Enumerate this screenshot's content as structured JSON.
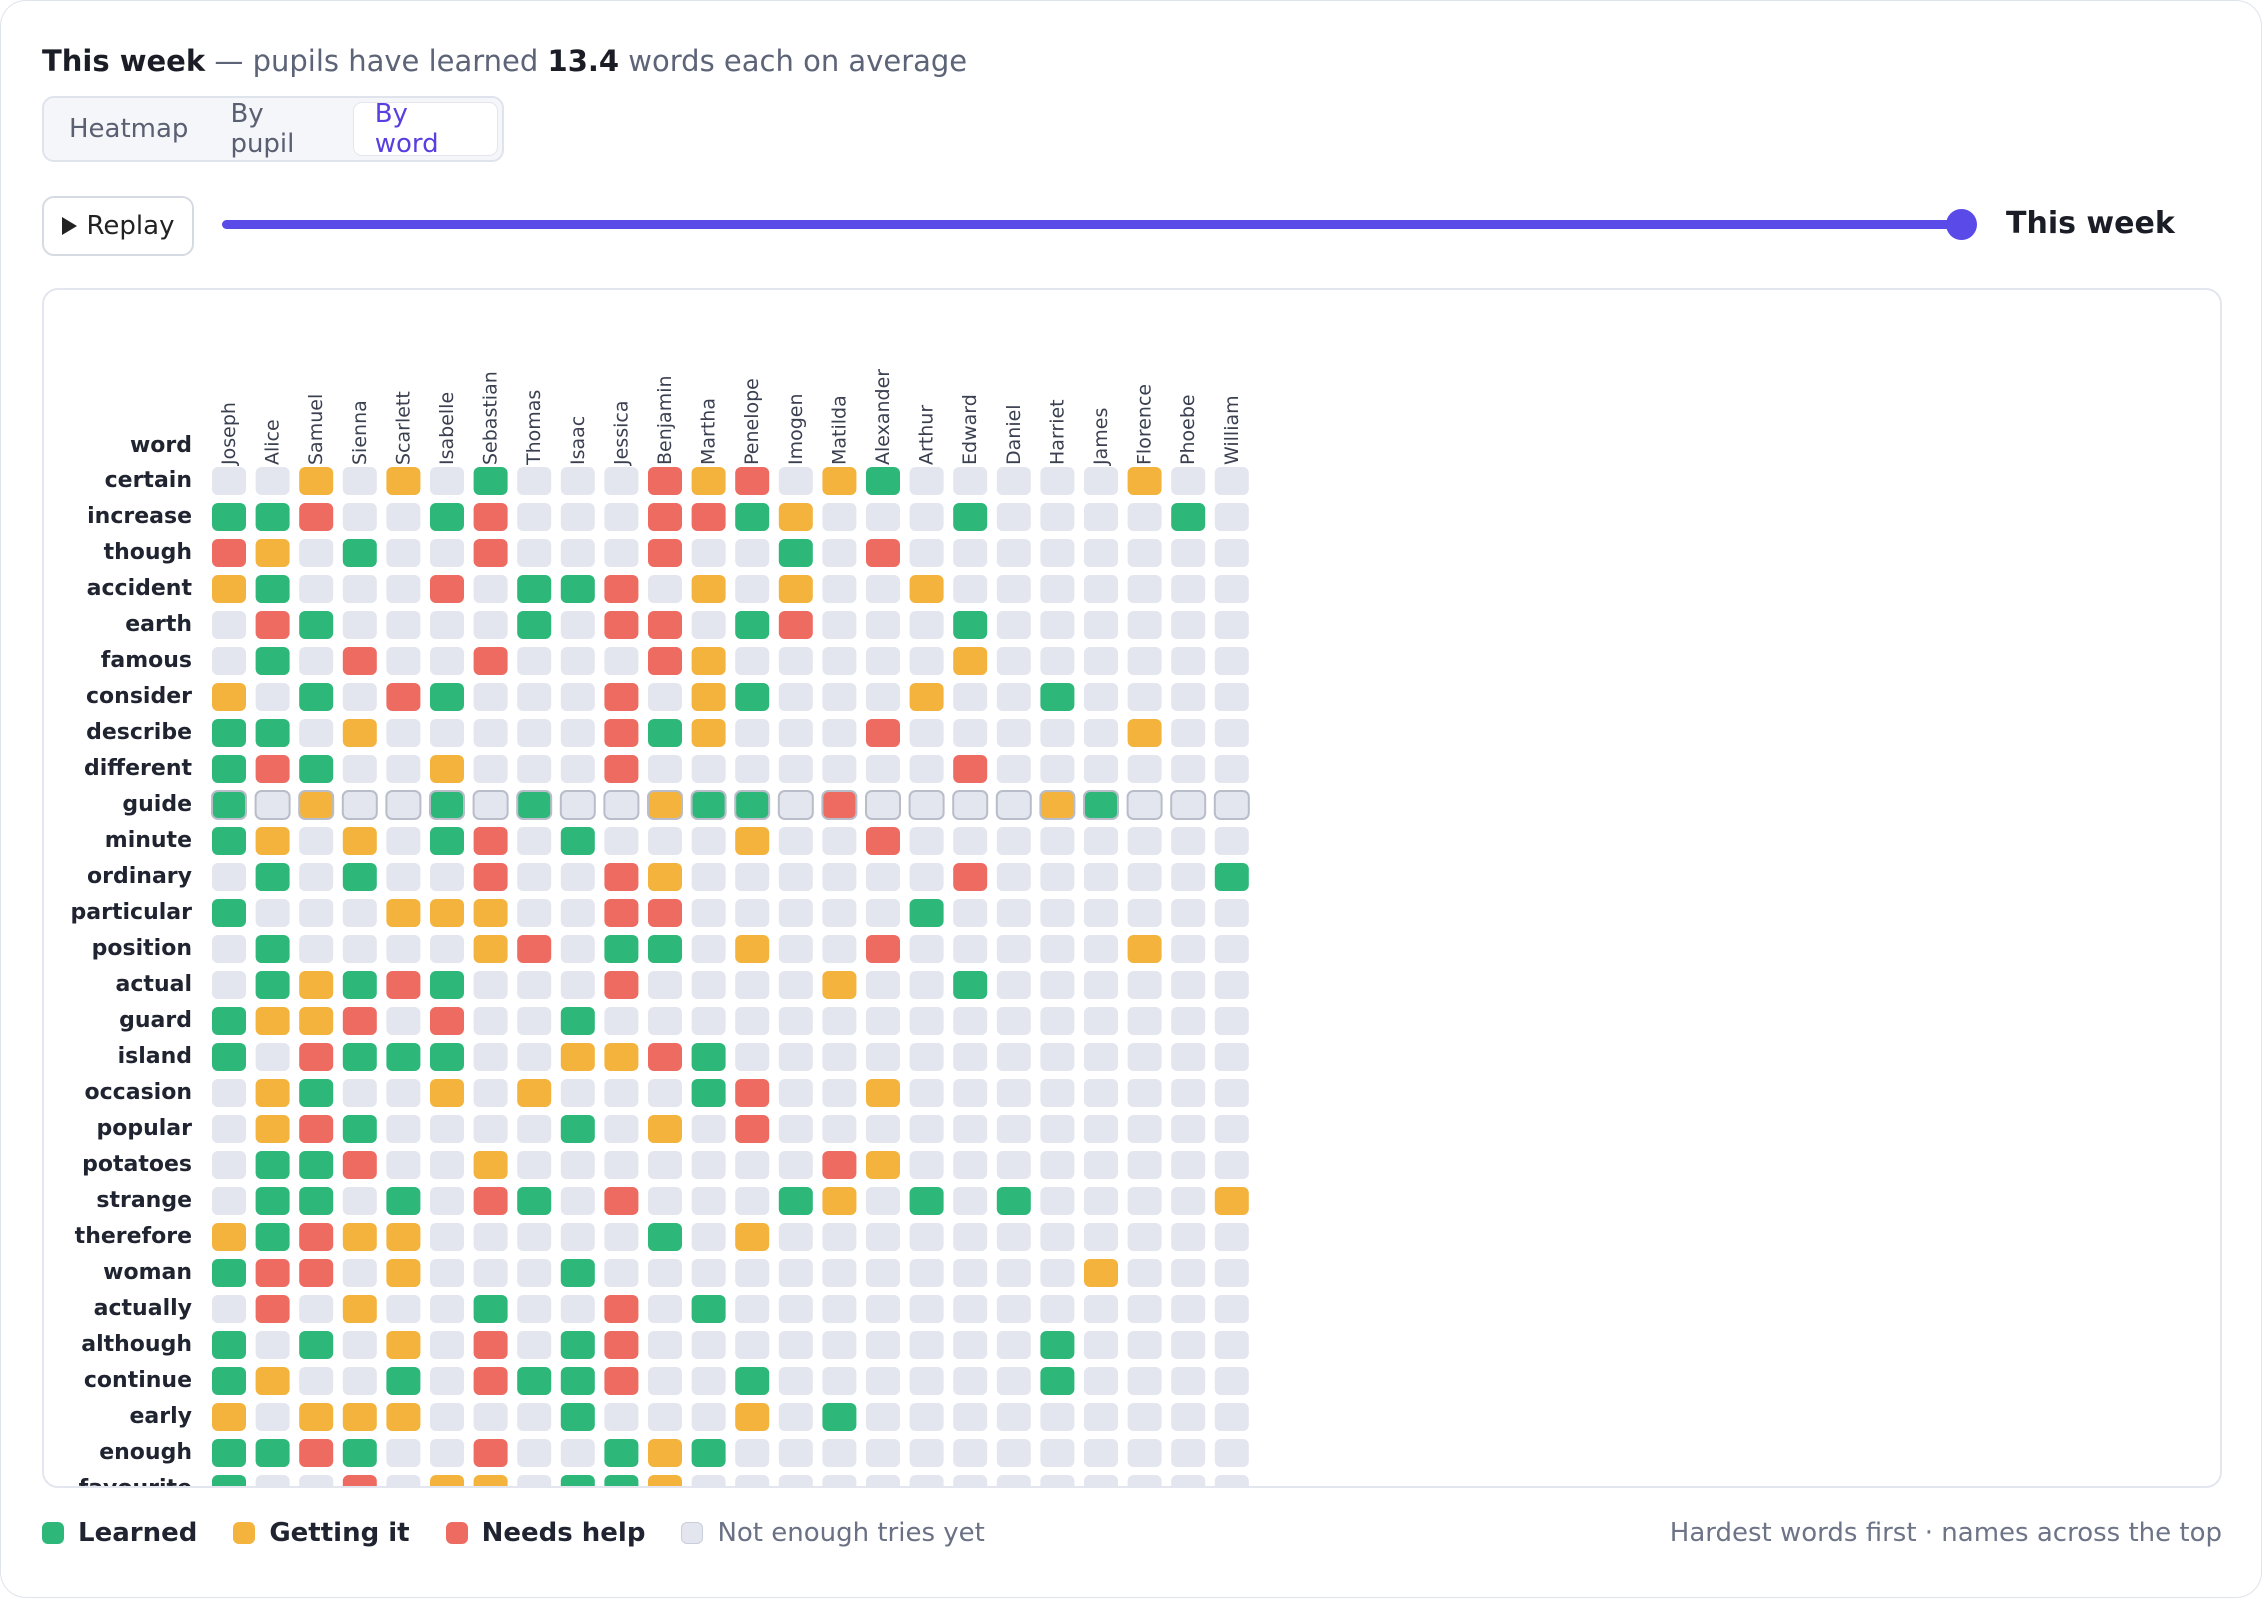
{
  "header": {
    "title_bold": "This week",
    "title_mid": " — pupils have learned ",
    "average": "13.4",
    "title_end": " words each on average"
  },
  "tabs": [
    "Heatmap",
    "By pupil",
    "By word"
  ],
  "active_tab": 2,
  "replay_label": "Replay",
  "slider": {
    "label": "This week",
    "progress": 1.0
  },
  "colors": {
    "learned": "#2db87a",
    "getting": "#f3b33c",
    "needs": "#ee6b62",
    "none": "#e4e6ef",
    "accent": "#5a4ae8"
  },
  "grid": {
    "corner_label": "word",
    "pupils": [
      "Joseph",
      "Alice",
      "Samuel",
      "Sienna",
      "Scarlett",
      "Isabelle",
      "Sebastian",
      "Thomas",
      "Isaac",
      "Jessica",
      "Benjamin",
      "Martha",
      "Penelope",
      "Imogen",
      "Matilda",
      "Alexander",
      "Arthur",
      "Edward",
      "Daniel",
      "Harriet",
      "James",
      "Florence",
      "Phoebe",
      "William"
    ],
    "highlight_row": 9,
    "rows": [
      {
        "word": "certain",
        "cells": "..Y.Y.G...RYR.YG.....Y.."
      },
      {
        "word": "increase",
        "cells": "GGR..GR...RRGY...G....G."
      },
      {
        "word": "though",
        "cells": "RY.G..R...R..G.R........"
      },
      {
        "word": "accident",
        "cells": "YG...R.GGR.Y.Y..Y......."
      },
      {
        "word": "earth",
        "cells": ".RG....G.RR.GR...G......"
      },
      {
        "word": "famous",
        "cells": ".G.R..R...RY.....Y......"
      },
      {
        "word": "consider",
        "cells": "Y.G.RG...R.YG...Y..G...."
      },
      {
        "word": "describe",
        "cells": "GG.Y.....RGY...R.....Y.."
      },
      {
        "word": "different",
        "cells": "GRG..Y...R.......R......"
      },
      {
        "word": "guide",
        "cells": "G.Y..G.G..YGG.R....YG..."
      },
      {
        "word": "minute",
        "cells": "GY.Y.GR.G...Y..R........"
      },
      {
        "word": "ordinary",
        "cells": ".G.G..R..RY......R.....G"
      },
      {
        "word": "particular",
        "cells": "G...YYY..RR.....G......."
      },
      {
        "word": "position",
        ".G....YR.GG.Y..R.....Y..": "",
        "cells": ".G....YR.GG.Y..R.....Y.."
      },
      {
        "word": "actual",
        "cells": ".GYGRG...R....Y..G......"
      },
      {
        "word": "guard",
        "cells": "GYYR.R..G..............."
      },
      {
        "word": "island",
        "cells": "G.RGGG..YYRG............"
      },
      {
        "word": "occasion",
        "cells": ".YG..Y.Y...GR..Y........"
      },
      {
        "word": "popular",
        "cells": ".YRG....G.Y.R..........."
      },
      {
        "word": "potatoes",
        "cells": ".GGR..Y.......RY........"
      },
      {
        "word": "strange",
        "cells": ".GG.G.RG.R...GY.G.G....Y"
      },
      {
        "word": "therefore",
        "cells": "YGRYY.....G.Y..........."
      },
      {
        "word": "woman",
        "cells": "GRR.Y...G...........Y..."
      },
      {
        "word": "actually",
        "cells": ".R.Y..G..R.G............"
      },
      {
        "word": "although",
        "cells": "G.G.Y.R.GR.........G...."
      },
      {
        "word": "continue",
        "cells": "GY..G.RGGR..G......G...."
      },
      {
        "word": "early",
        "cells": "Y.YYY...G...Y.G........."
      },
      {
        "word": "enough",
        "cells": "GGRG..R..GYG............"
      },
      {
        "word": "favourite",
        "cells": "G..R.YY.GGY............."
      }
    ]
  },
  "legend": [
    {
      "key": "learned",
      "label": "Learned"
    },
    {
      "key": "getting",
      "label": "Getting it"
    },
    {
      "key": "needs",
      "label": "Needs help"
    },
    {
      "key": "none",
      "label": "Not enough tries yet"
    }
  ],
  "footnote": "Hardest words first · names across the top"
}
